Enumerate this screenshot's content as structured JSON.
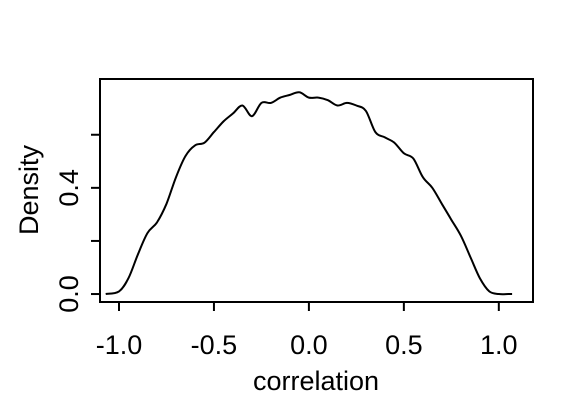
{
  "chart_data": {
    "type": "line",
    "title": "",
    "xlabel": "correlation",
    "ylabel": "Density",
    "xlim": [
      -1.1,
      1.18
    ],
    "ylim": [
      -0.03,
      0.81
    ],
    "x_ticks": [
      -1.0,
      -0.5,
      0.0,
      0.5,
      1.0
    ],
    "x_tick_labels": [
      "-1.0",
      "-0.5",
      "0.0",
      "0.5",
      "1.0"
    ],
    "y_ticks": [
      0.0,
      0.2,
      0.4,
      0.6
    ],
    "y_tick_labels": [
      "0.0",
      "",
      "0.4",
      ""
    ],
    "grid": false,
    "legend": "none",
    "series": [
      {
        "color": "#000000",
        "x": [
          -1.07,
          -1.0,
          -0.95,
          -0.9,
          -0.85,
          -0.8,
          -0.75,
          -0.7,
          -0.65,
          -0.6,
          -0.55,
          -0.5,
          -0.45,
          -0.4,
          -0.35,
          -0.3,
          -0.25,
          -0.2,
          -0.15,
          -0.1,
          -0.05,
          0.0,
          0.05,
          0.1,
          0.15,
          0.2,
          0.25,
          0.3,
          0.35,
          0.4,
          0.45,
          0.5,
          0.55,
          0.6,
          0.65,
          0.7,
          0.75,
          0.8,
          0.85,
          0.9,
          0.95,
          1.0,
          1.05,
          1.07
        ],
        "y": [
          0.0,
          0.01,
          0.06,
          0.15,
          0.23,
          0.27,
          0.34,
          0.44,
          0.52,
          0.56,
          0.57,
          0.61,
          0.65,
          0.68,
          0.71,
          0.67,
          0.72,
          0.72,
          0.74,
          0.75,
          0.76,
          0.74,
          0.74,
          0.73,
          0.71,
          0.72,
          0.71,
          0.69,
          0.61,
          0.59,
          0.57,
          0.53,
          0.51,
          0.44,
          0.4,
          0.34,
          0.28,
          0.22,
          0.14,
          0.06,
          0.01,
          0.0,
          0.0,
          0.0
        ]
      }
    ]
  }
}
